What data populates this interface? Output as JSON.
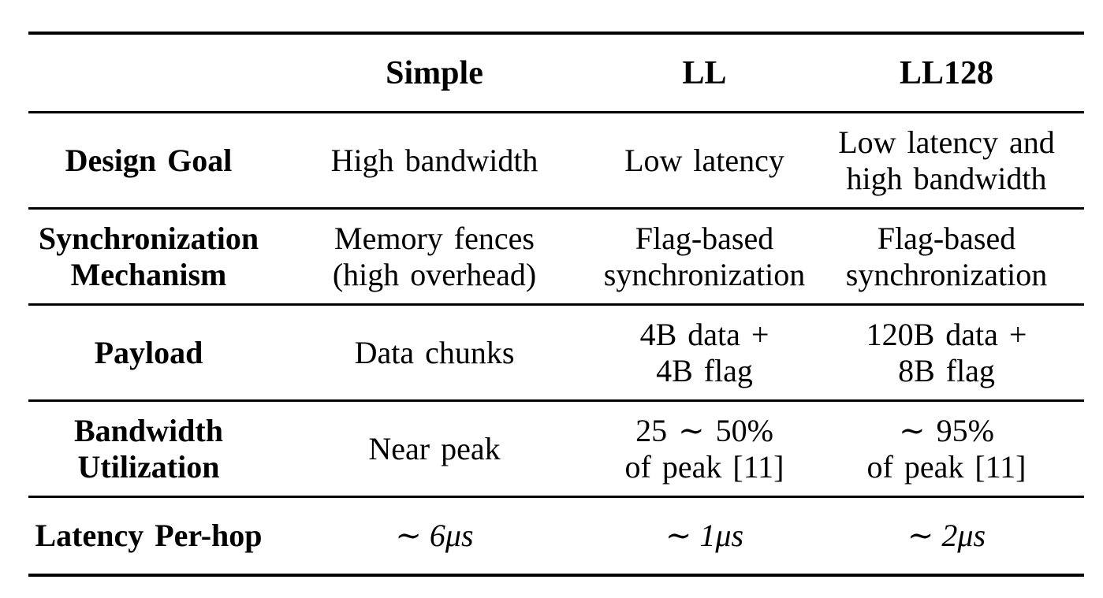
{
  "table": {
    "columns": [
      "",
      "Simple",
      "LL",
      "LL128"
    ],
    "rows": [
      {
        "label": [
          "Design Goal"
        ],
        "simple": [
          "High bandwidth"
        ],
        "ll": [
          "Low latency"
        ],
        "ll128": [
          "Low latency and",
          "high bandwidth"
        ]
      },
      {
        "label": [
          "Synchronization",
          "Mechanism"
        ],
        "simple": [
          "Memory fences",
          "(high overhead)"
        ],
        "ll": [
          "Flag-based",
          "synchronization"
        ],
        "ll128": [
          "Flag-based",
          "synchronization"
        ]
      },
      {
        "label": [
          "Payload"
        ],
        "simple": [
          "Data chunks"
        ],
        "ll": [
          "4B data +",
          "4B flag"
        ],
        "ll128": [
          "120B data +",
          "8B flag"
        ]
      },
      {
        "label": [
          "Bandwidth",
          "Utilization"
        ],
        "simple": [
          "Near peak"
        ],
        "ll": [
          "25 ∼ 50%",
          "of peak [11]"
        ],
        "ll128": [
          "∼ 95%",
          "of peak [11]"
        ]
      },
      {
        "label": [
          "Latency Per-hop"
        ],
        "simple": [
          "∼ 6μs"
        ],
        "ll": [
          "∼ 1μs"
        ],
        "ll128": [
          "∼ 2μs"
        ]
      }
    ]
  }
}
